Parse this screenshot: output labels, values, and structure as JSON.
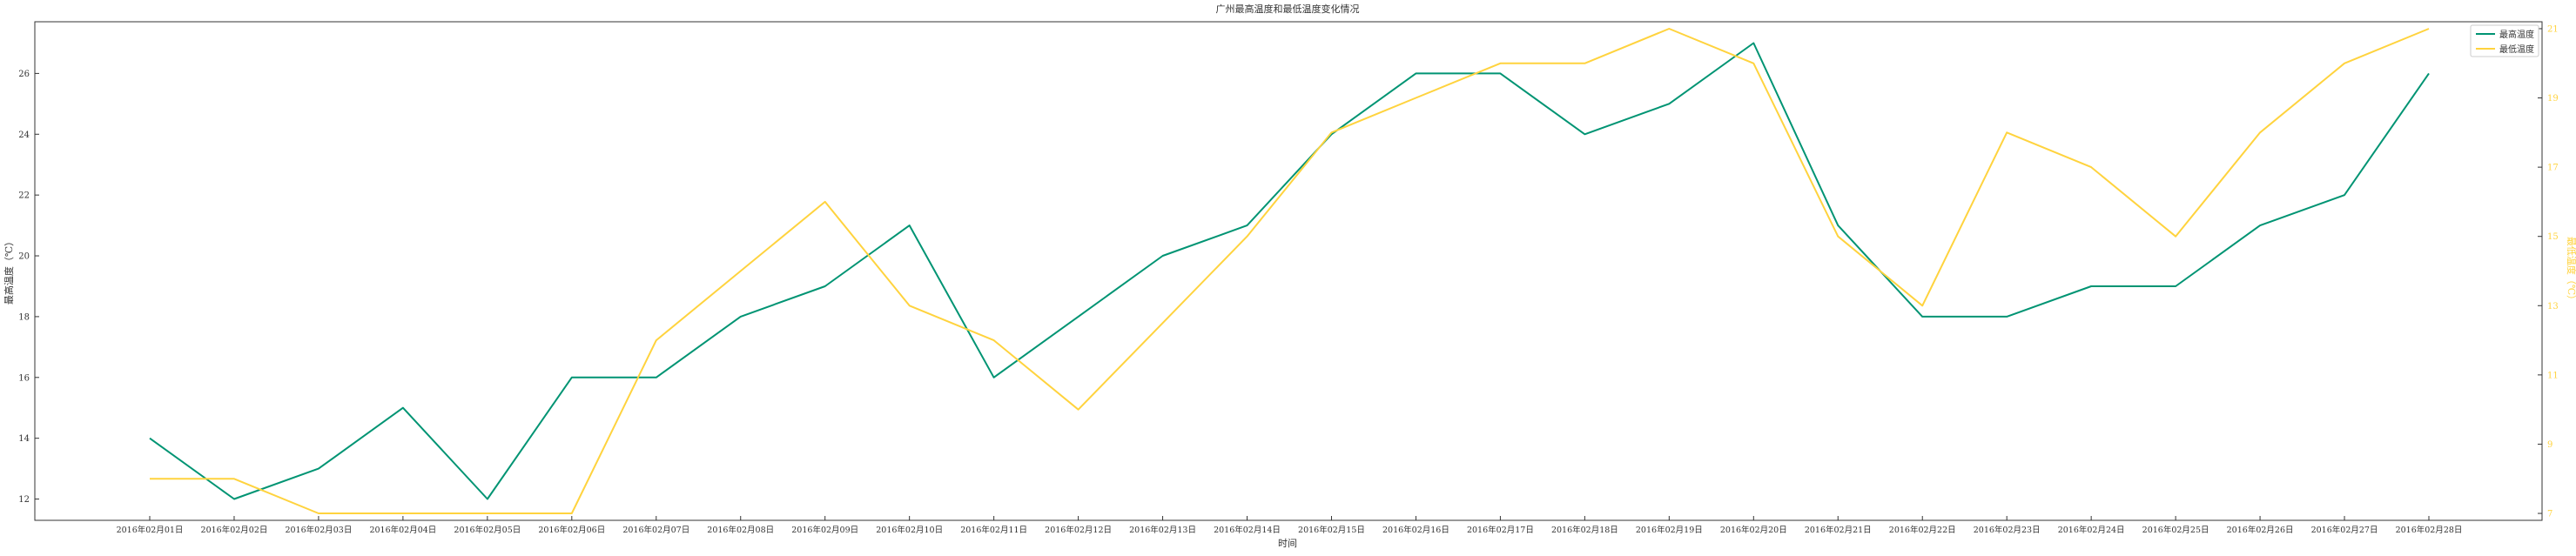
{
  "chart_data": {
    "type": "line",
    "title": "广州最高温度和最低温度变化情况",
    "xlabel": "时间",
    "ylabel_left": "最高温度（℃）",
    "ylabel_right": "最低温度（℃）",
    "categories": [
      "2016年02月01日",
      "2016年02月02日",
      "2016年02月03日",
      "2016年02月04日",
      "2016年02月05日",
      "2016年02月06日",
      "2016年02月07日",
      "2016年02月08日",
      "2016年02月09日",
      "2016年02月10日",
      "2016年02月11日",
      "2016年02月12日",
      "2016年02月13日",
      "2016年02月14日",
      "2016年02月15日",
      "2016年02月16日",
      "2016年02月17日",
      "2016年02月18日",
      "2016年02月19日",
      "2016年02月20日",
      "2016年02月21日",
      "2016年02月22日",
      "2016年02月23日",
      "2016年02月24日",
      "2016年02月25日",
      "2016年02月26日",
      "2016年02月27日",
      "2016年02月28日"
    ],
    "left_axis": {
      "ylim": [
        11.3,
        27.7
      ],
      "ticks": [
        12,
        14,
        16,
        18,
        20,
        22,
        24,
        26
      ]
    },
    "right_axis": {
      "ylim": [
        6.8,
        21.2
      ],
      "ticks": [
        7,
        9,
        11,
        13,
        15,
        17,
        19,
        21
      ]
    },
    "series": [
      {
        "name": "最高温度",
        "axis": "left",
        "color": "#009473",
        "values": [
          14,
          12,
          13,
          15,
          12,
          16,
          16,
          18,
          19,
          21,
          16,
          18,
          20,
          21,
          24,
          26,
          26,
          24,
          25,
          27,
          21,
          18,
          18,
          19,
          19,
          21,
          22,
          26
        ]
      },
      {
        "name": "最低温度",
        "axis": "right",
        "color": "#FFD33E",
        "values": [
          8,
          8,
          7,
          7,
          7,
          7,
          12,
          14,
          16,
          13,
          12,
          10,
          12.5,
          15,
          18,
          19,
          20,
          20,
          21,
          20,
          15,
          13,
          18,
          17,
          15,
          18,
          20,
          21
        ]
      }
    ],
    "legend_position": "top-right",
    "grid": false
  }
}
